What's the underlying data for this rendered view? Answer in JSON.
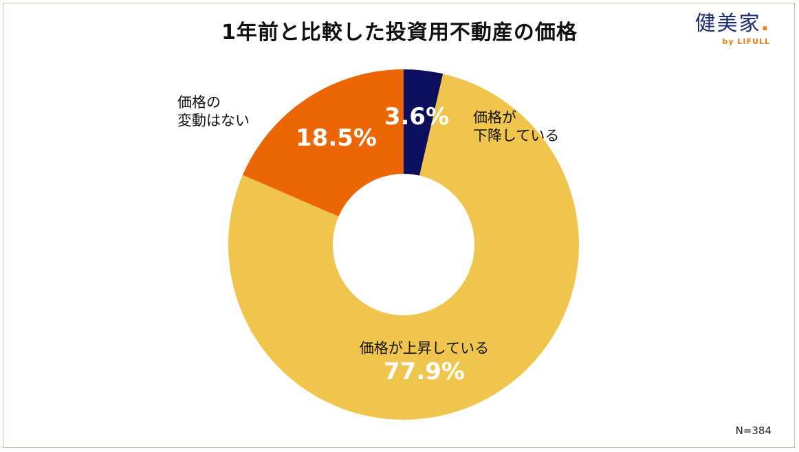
{
  "title": "1年前と比較した投資用不動産の価格",
  "logo": {
    "main": "健美家",
    "dot": ".",
    "sub": "by LIFULL"
  },
  "note": "N=384",
  "colors": {
    "up": "#f0c54e",
    "same": "#ec6605",
    "down": "#0c0f5e",
    "hole": "#ffffff",
    "text_dark": "#111111",
    "text_light": "#ffffff"
  },
  "chart_data": {
    "type": "pie",
    "variant": "donut",
    "title": "1年前と比較した投資用不動産の価格",
    "slices": [
      {
        "key": "down",
        "label_lines": [
          "価格が",
          "下降している"
        ],
        "value": 3.6,
        "value_label": "3.6%",
        "color": "#0c0f5e"
      },
      {
        "key": "up",
        "label_lines": [
          "価格が上昇している"
        ],
        "value": 77.9,
        "value_label": "77.9%",
        "color": "#f0c54e"
      },
      {
        "key": "same",
        "label_lines": [
          "価格の",
          "変動はない"
        ],
        "value": 18.5,
        "value_label": "18.5%",
        "color": "#ec6605"
      }
    ],
    "start": "12 o'clock",
    "direction": "clockwise",
    "sample_size": "N=384"
  }
}
